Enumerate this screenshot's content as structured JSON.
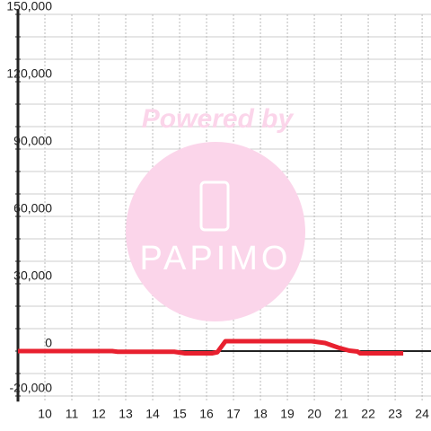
{
  "chart_data": {
    "type": "line",
    "watermark": {
      "top": "Powered by",
      "logo": "PAPIMO"
    },
    "x": [
      9,
      12.5,
      12.7,
      14.8,
      15.2,
      16.2,
      16.4,
      16.7,
      19.9,
      20.4,
      20.9,
      21.3,
      21.6,
      21.7,
      23.3
    ],
    "series": [
      {
        "color": "#e8202f",
        "values": [
          0,
          0,
          -300,
          -300,
          -1000,
          -1000,
          -500,
          4400,
          4400,
          3600,
          1500,
          200,
          -200,
          -1000,
          -1000
        ]
      }
    ],
    "xlim": [
      9,
      24.33
    ],
    "xticks": [
      10,
      11,
      12,
      13,
      14,
      15,
      16,
      17,
      18,
      19,
      20,
      21,
      22,
      23,
      24
    ],
    "ylim": [
      -22500,
      150000
    ],
    "yticks": [
      {
        "value": -20000,
        "label": "-20,000"
      },
      0,
      {
        "value": 30000,
        "label": "30,000"
      },
      {
        "value": 60000,
        "label": "60,000"
      },
      {
        "value": 90000,
        "label": "90,000"
      },
      {
        "value": 120000,
        "label": "120,000"
      },
      {
        "value": 150000,
        "label": "150,000"
      }
    ],
    "yminor": [
      -10000,
      10000,
      20000,
      40000,
      50000,
      70000,
      80000,
      100000,
      110000,
      130000,
      140000
    ],
    "grid": true
  }
}
